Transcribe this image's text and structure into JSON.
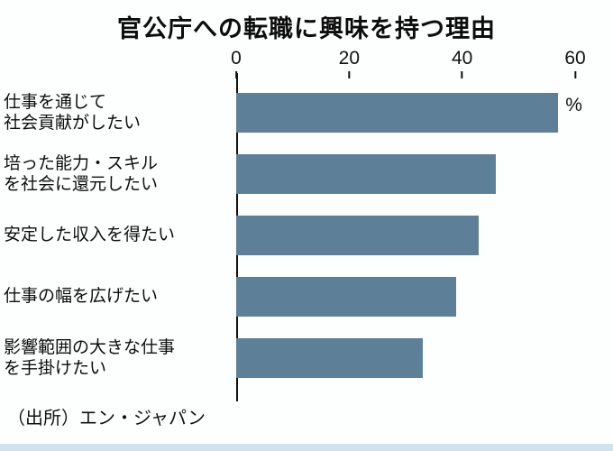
{
  "title": "官公庁への転職に興味を持つ理由",
  "source": "（出所）エン・ジャパン",
  "colors": {
    "bar": "#5e7f98",
    "axis": "#111111",
    "background": "#fdfefe",
    "bottom_strip": "#cfe2ee"
  },
  "chart_data": {
    "type": "bar",
    "orientation": "horizontal",
    "title": "官公庁への転職に興味を持つ理由",
    "categories": [
      "仕事を通じて\n社会貢献がしたい",
      "培った能力・スキル\nを社会に還元したい",
      "安定した収入を得たい",
      "仕事の幅を広げたい",
      "影響範囲の大きな仕事\nを手掛けたい"
    ],
    "values": [
      57,
      46,
      43,
      39,
      33
    ],
    "unit": "%",
    "ticks": [
      0,
      20,
      40,
      60
    ],
    "xlim": [
      0,
      60
    ],
    "grid": false,
    "legend": "none",
    "source": "（出所）エン・ジャパン"
  }
}
